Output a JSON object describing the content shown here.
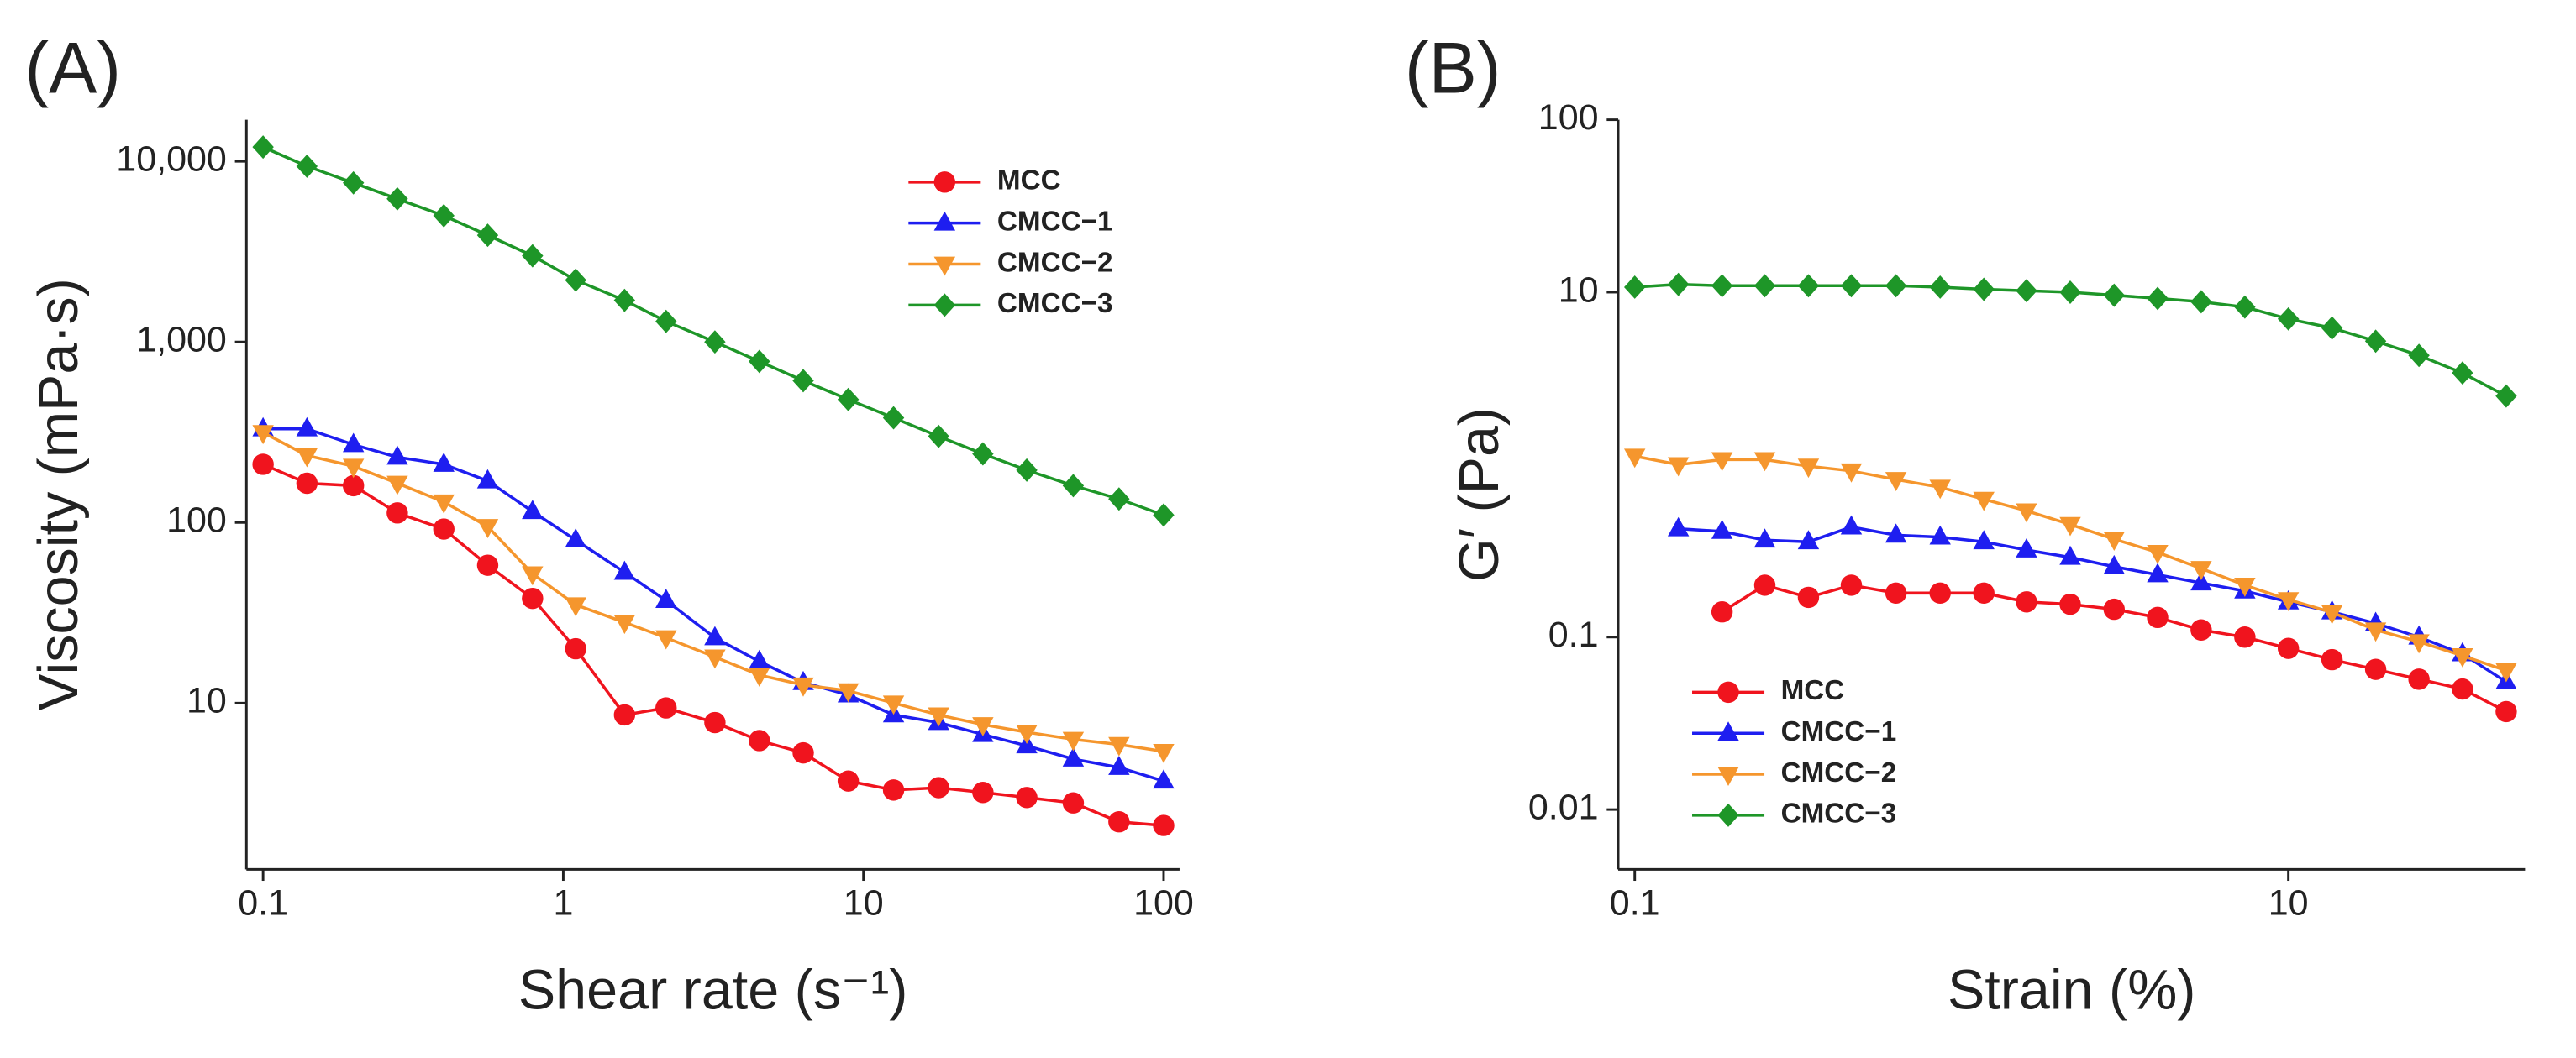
{
  "chart_data": [
    {
      "type": "line",
      "label": "(A)",
      "xlabel": "Shear rate (s⁻¹)",
      "ylabel": "Viscosity (mPa·s)",
      "xlog": true,
      "ylog": true,
      "legend": "upper right",
      "xlim": [
        0.088,
        113
      ],
      "ylim": [
        1.2,
        17000
      ],
      "xticks": [
        0.1,
        1,
        10,
        100
      ],
      "yticks": [
        10,
        100,
        {
          "value": 1000,
          "label": "1,000"
        },
        {
          "value": 10000,
          "label": "10,000"
        }
      ],
      "x": [
        0.1,
        0.14,
        0.2,
        0.28,
        0.4,
        0.56,
        0.79,
        1.1,
        1.6,
        2.2,
        3.2,
        4.5,
        6.3,
        8.9,
        12.6,
        17.8,
        25,
        35,
        50,
        71,
        100
      ],
      "series": [
        {
          "name": "MCC",
          "color": "#f0141e",
          "marker": "circle",
          "values": [
            210,
            165,
            160,
            113,
            92,
            58,
            38,
            20,
            8.6,
            9.4,
            7.8,
            6.2,
            5.3,
            3.7,
            3.3,
            3.4,
            3.2,
            3.0,
            2.8,
            2.2,
            2.1
          ]
        },
        {
          "name": "CMCC−1",
          "color": "#1e1ef0",
          "marker": "triangle-up",
          "values": [
            330,
            330,
            270,
            230,
            210,
            170,
            115,
            80,
            53,
            37,
            23,
            17,
            13,
            11.1,
            8.6,
            7.8,
            6.7,
            5.8,
            4.9,
            4.4,
            3.7
          ]
        },
        {
          "name": "CMCC−2",
          "color": "#f5962d",
          "marker": "triangle-down",
          "values": [
            315,
            235,
            205,
            165,
            130,
            95,
            52,
            35,
            28,
            23,
            18,
            14.3,
            12.6,
            11.7,
            10,
            8.6,
            7.6,
            6.9,
            6.3,
            5.9,
            5.4
          ]
        },
        {
          "name": "CMCC−3",
          "color": "#1e9628",
          "marker": "diamond",
          "values": [
            12000,
            9400,
            7600,
            6200,
            5000,
            3900,
            3000,
            2200,
            1700,
            1300,
            1000,
            780,
            610,
            480,
            380,
            300,
            240,
            195,
            160,
            135,
            110
          ]
        }
      ]
    },
    {
      "type": "line",
      "label": "(B)",
      "xlabel": "Strain (%)",
      "ylabel": "G′ (Pa)",
      "xlog": true,
      "ylog": true,
      "legend": "lower left",
      "xlim": [
        0.089,
        53
      ],
      "ylim": [
        0.0045,
        100
      ],
      "xticks": [
        0.1,
        10
      ],
      "yticks": [
        0.01,
        0.1,
        10,
        100
      ],
      "x": [
        0.1,
        0.136,
        0.185,
        0.25,
        0.34,
        0.46,
        0.63,
        0.86,
        1.17,
        1.58,
        2.15,
        2.93,
        3.98,
        5.41,
        7.36,
        10,
        13.6,
        18.5,
        25.1,
        34.1,
        46.4
      ],
      "series": [
        {
          "name": "MCC",
          "color": "#f0141e",
          "marker": "circle",
          "values": [
            null,
            null,
            0.14,
            0.2,
            0.17,
            0.2,
            0.18,
            0.18,
            0.18,
            0.16,
            0.155,
            0.145,
            0.13,
            0.11,
            0.1,
            0.086,
            0.074,
            0.065,
            0.057,
            0.05,
            0.037
          ]
        },
        {
          "name": "CMCC−1",
          "color": "#1e1ef0",
          "marker": "triangle-up",
          "values": [
            null,
            0.425,
            0.41,
            0.365,
            0.357,
            0.435,
            0.39,
            0.38,
            0.357,
            0.32,
            0.29,
            0.256,
            0.23,
            0.206,
            0.185,
            0.16,
            0.14,
            0.12,
            0.1,
            0.08,
            0.055
          ]
        },
        {
          "name": "CMCC−2",
          "color": "#f5962d",
          "marker": "triangle-down",
          "values": [
            1.12,
            1.0,
            1.07,
            1.07,
            0.98,
            0.92,
            0.82,
            0.74,
            0.63,
            0.54,
            0.45,
            0.37,
            0.31,
            0.25,
            0.2,
            0.165,
            0.139,
            0.11,
            0.094,
            0.078,
            0.064
          ]
        },
        {
          "name": "CMCC−3",
          "color": "#1e9628",
          "marker": "diamond",
          "values": [
            10.7,
            11.1,
            10.9,
            10.9,
            10.9,
            10.9,
            10.9,
            10.7,
            10.4,
            10.2,
            10,
            9.6,
            9.2,
            8.8,
            8.2,
            7.0,
            6.2,
            5.2,
            4.3,
            3.4,
            2.5
          ]
        }
      ]
    }
  ]
}
